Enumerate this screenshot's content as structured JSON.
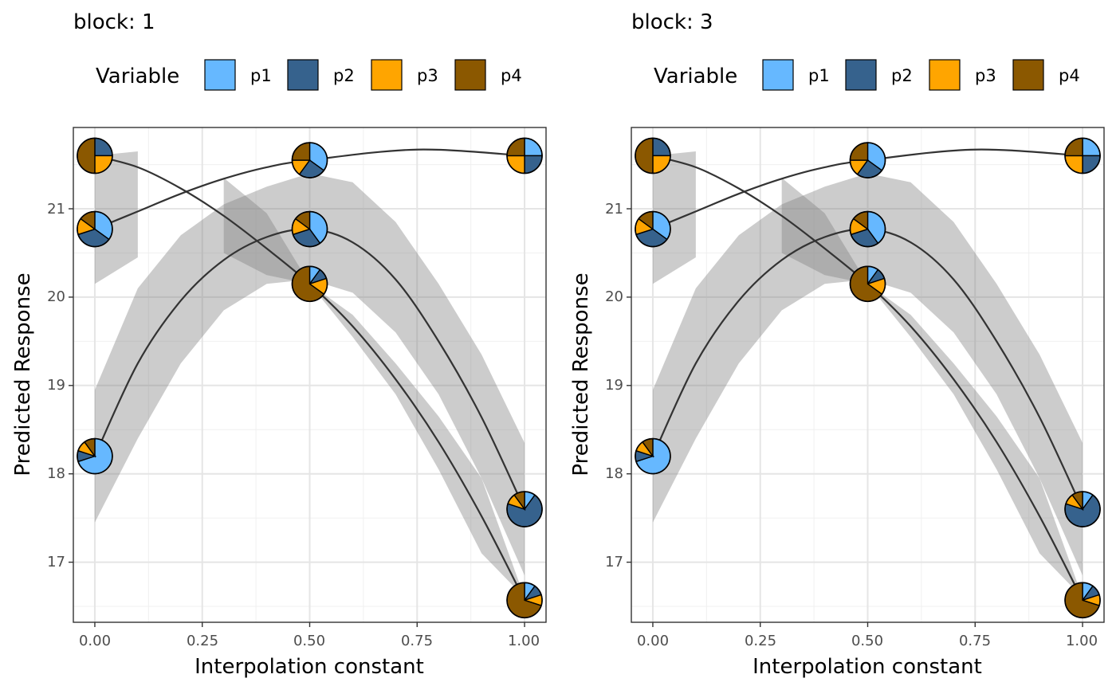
{
  "legend": {
    "title": "Variable",
    "items": [
      {
        "label": "p1",
        "color": "#66B8FF"
      },
      {
        "label": "p2",
        "color": "#36628D"
      },
      {
        "label": "p3",
        "color": "#FFA500"
      },
      {
        "label": "p4",
        "color": "#8B5800"
      }
    ]
  },
  "chart_data": [
    {
      "type": "line",
      "title": "block: 1",
      "xlabel": "Interpolation constant",
      "ylabel": "Predicted Response",
      "xlim": [
        -0.05,
        1.05
      ],
      "ylim": [
        16.32,
        21.92
      ],
      "x_ticks": [
        "0.00",
        "0.25",
        "0.50",
        "0.75",
        "1.00"
      ],
      "y_ticks": [
        "17",
        "18",
        "19",
        "20",
        "21"
      ],
      "grid": true,
      "legend_position": "top",
      "series": [
        {
          "x": [
            0,
            0.1,
            0.2,
            0.3,
            0.4,
            0.5,
            0.6,
            0.7,
            0.8,
            0.9,
            1.0
          ],
          "y": [
            21.6,
            21.47,
            21.23,
            20.92,
            20.55,
            20.15,
            19.67,
            19.07,
            18.36,
            17.52,
            16.57
          ],
          "lower": [
            20.15,
            20.45,
            null,
            20.5,
            20.25,
            20.15,
            19.55,
            18.9,
            18.05,
            17.1,
            16.6
          ],
          "upper": [
            21.6,
            21.65,
            null,
            21.35,
            20.95,
            20.15,
            19.8,
            19.25,
            18.65,
            17.95,
            16.6
          ],
          "start": [
            1,
            0,
            0,
            0
          ],
          "end": [
            0.1,
            0.1,
            0.1,
            0.7
          ]
        },
        {
          "x": [
            0,
            0.1,
            0.2,
            0.3,
            0.4,
            0.5,
            0.6,
            0.7,
            0.8,
            0.9,
            1.0
          ],
          "y": [
            18.2,
            19.25,
            19.96,
            20.42,
            20.68,
            20.77,
            20.62,
            20.2,
            19.5,
            18.64,
            17.6
          ],
          "lower": [
            17.45,
            18.4,
            19.25,
            19.85,
            20.15,
            20.2,
            20.05,
            19.6,
            18.9,
            17.95,
            16.85
          ],
          "upper": [
            18.95,
            20.1,
            20.7,
            21.05,
            21.25,
            21.4,
            21.3,
            20.85,
            20.15,
            19.35,
            18.35
          ],
          "start": [
            0.7,
            0.1,
            0.1,
            0.1
          ],
          "end": [
            0.1,
            0.7,
            0.1,
            0.1
          ]
        },
        {
          "x": [
            0,
            0.1,
            0.2,
            0.3,
            0.4,
            0.5,
            0.75,
            1.0
          ],
          "y": [
            20.77,
            20.97,
            21.17,
            21.34,
            21.47,
            21.55,
            21.67,
            21.6
          ],
          "start": [
            0.35,
            0.35,
            0.15,
            0.15
          ],
          "end": [
            0.25,
            0.25,
            0.25,
            0.25
          ]
        }
      ],
      "pie_points": [
        {
          "x": 0.0,
          "y": 21.6,
          "shares": [
            0,
            0.25,
            0.25,
            0.5
          ]
        },
        {
          "x": 0.5,
          "y": 21.55,
          "shares": [
            0.35,
            0.25,
            0.15,
            0.25
          ]
        },
        {
          "x": 1.0,
          "y": 21.6,
          "shares": [
            0.25,
            0.25,
            0.25,
            0.25
          ]
        },
        {
          "x": 0.0,
          "y": 20.77,
          "shares": [
            0.35,
            0.35,
            0.15,
            0.15
          ]
        },
        {
          "x": 0.5,
          "y": 20.77,
          "shares": [
            0.4,
            0.3,
            0.15,
            0.15
          ]
        },
        {
          "x": 0.5,
          "y": 20.15,
          "shares": [
            0.1,
            0.1,
            0.15,
            0.65
          ]
        },
        {
          "x": 0.0,
          "y": 18.2,
          "shares": [
            0.7,
            0.1,
            0.1,
            0.1
          ]
        },
        {
          "x": 1.0,
          "y": 17.6,
          "shares": [
            0.1,
            0.7,
            0.1,
            0.1
          ]
        },
        {
          "x": 1.0,
          "y": 16.57,
          "shares": [
            0.1,
            0.1,
            0.1,
            0.7
          ]
        }
      ]
    },
    {
      "type": "line",
      "title": "block: 3",
      "xlabel": "Interpolation constant",
      "ylabel": "Predicted Response",
      "xlim": [
        -0.05,
        1.05
      ],
      "ylim": [
        16.32,
        21.92
      ],
      "x_ticks": [
        "0.00",
        "0.25",
        "0.50",
        "0.75",
        "1.00"
      ],
      "y_ticks": [
        "17",
        "18",
        "19",
        "20",
        "21"
      ],
      "grid": true,
      "legend_position": "top",
      "series": [
        {
          "x": [
            0,
            0.1,
            0.2,
            0.3,
            0.4,
            0.5,
            0.6,
            0.7,
            0.8,
            0.9,
            1.0
          ],
          "y": [
            21.6,
            21.47,
            21.23,
            20.92,
            20.55,
            20.15,
            19.67,
            19.07,
            18.36,
            17.52,
            16.57
          ],
          "lower": [
            20.15,
            20.45,
            null,
            20.5,
            20.25,
            20.15,
            19.55,
            18.9,
            18.05,
            17.1,
            16.6
          ],
          "upper": [
            21.6,
            21.65,
            null,
            21.35,
            20.95,
            20.15,
            19.8,
            19.25,
            18.65,
            17.95,
            16.6
          ],
          "start": [
            1,
            0,
            0,
            0
          ],
          "end": [
            0.1,
            0.1,
            0.1,
            0.7
          ]
        },
        {
          "x": [
            0,
            0.1,
            0.2,
            0.3,
            0.4,
            0.5,
            0.6,
            0.7,
            0.8,
            0.9,
            1.0
          ],
          "y": [
            18.2,
            19.25,
            19.96,
            20.42,
            20.68,
            20.77,
            20.62,
            20.2,
            19.5,
            18.64,
            17.6
          ],
          "lower": [
            17.45,
            18.4,
            19.25,
            19.85,
            20.15,
            20.2,
            20.05,
            19.6,
            18.9,
            17.95,
            16.85
          ],
          "upper": [
            18.95,
            20.1,
            20.7,
            21.05,
            21.25,
            21.4,
            21.3,
            20.85,
            20.15,
            19.35,
            18.35
          ],
          "start": [
            0.7,
            0.1,
            0.1,
            0.1
          ],
          "end": [
            0.1,
            0.7,
            0.1,
            0.1
          ]
        },
        {
          "x": [
            0,
            0.1,
            0.2,
            0.3,
            0.4,
            0.5,
            0.75,
            1.0
          ],
          "y": [
            20.77,
            20.97,
            21.17,
            21.34,
            21.47,
            21.55,
            21.67,
            21.6
          ],
          "start": [
            0.35,
            0.35,
            0.15,
            0.15
          ],
          "end": [
            0.25,
            0.25,
            0.25,
            0.25
          ]
        }
      ],
      "pie_points": [
        {
          "x": 0.0,
          "y": 21.6,
          "shares": [
            0,
            0.25,
            0.25,
            0.5
          ]
        },
        {
          "x": 0.5,
          "y": 21.55,
          "shares": [
            0.35,
            0.25,
            0.15,
            0.25
          ]
        },
        {
          "x": 1.0,
          "y": 21.6,
          "shares": [
            0.25,
            0.25,
            0.25,
            0.25
          ]
        },
        {
          "x": 0.0,
          "y": 20.77,
          "shares": [
            0.35,
            0.35,
            0.15,
            0.15
          ]
        },
        {
          "x": 0.5,
          "y": 20.77,
          "shares": [
            0.4,
            0.3,
            0.15,
            0.15
          ]
        },
        {
          "x": 0.5,
          "y": 20.15,
          "shares": [
            0.1,
            0.1,
            0.15,
            0.65
          ]
        },
        {
          "x": 0.0,
          "y": 18.2,
          "shares": [
            0.7,
            0.1,
            0.1,
            0.1
          ]
        },
        {
          "x": 1.0,
          "y": 17.6,
          "shares": [
            0.1,
            0.7,
            0.1,
            0.1
          ]
        },
        {
          "x": 1.0,
          "y": 16.57,
          "shares": [
            0.1,
            0.1,
            0.1,
            0.7
          ]
        }
      ]
    }
  ]
}
